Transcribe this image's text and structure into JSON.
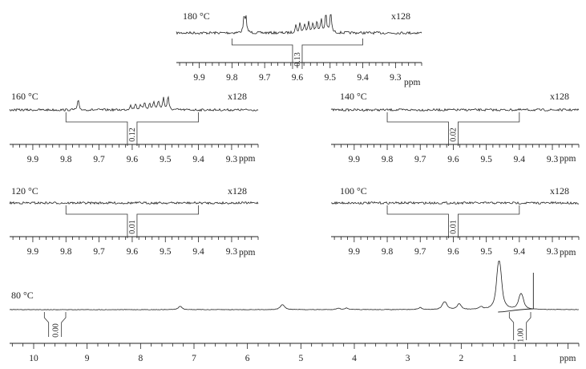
{
  "chart_data": [
    {
      "type": "line",
      "temperature_label": "180 °C",
      "scale_label": "x128",
      "integral_value": "0.13",
      "integral_range_ppm": [
        9.8,
        9.4
      ],
      "xlim_ppm": [
        9.97,
        9.22
      ],
      "x_ticks": [
        "9.9",
        "9.8",
        "9.7",
        "9.6",
        "9.5",
        "9.4",
        "9.3"
      ],
      "x_unit": "ppm",
      "peaks": [
        {
          "ppm": 9.763,
          "h": 0.62
        },
        {
          "ppm": 9.757,
          "h": 0.55
        },
        {
          "ppm": 9.605,
          "h": 0.3
        },
        {
          "ppm": 9.592,
          "h": 0.36
        },
        {
          "ppm": 9.578,
          "h": 0.34
        },
        {
          "ppm": 9.565,
          "h": 0.42
        },
        {
          "ppm": 9.553,
          "h": 0.38
        },
        {
          "ppm": 9.54,
          "h": 0.46
        },
        {
          "ppm": 9.527,
          "h": 0.5
        },
        {
          "ppm": 9.513,
          "h": 0.78
        },
        {
          "ppm": 9.498,
          "h": 0.82
        }
      ]
    },
    {
      "type": "line",
      "temperature_label": "160 °C",
      "scale_label": "x128",
      "integral_value": "0.12",
      "integral_range_ppm": [
        9.8,
        9.4
      ],
      "xlim_ppm": [
        9.97,
        9.22
      ],
      "x_ticks": [
        "9.9",
        "9.8",
        "9.7",
        "9.6",
        "9.5",
        "9.4",
        "9.3"
      ],
      "x_unit": "ppm",
      "peaks": [
        {
          "ppm": 9.763,
          "h": 0.5
        },
        {
          "ppm": 9.605,
          "h": 0.28
        },
        {
          "ppm": 9.59,
          "h": 0.32
        },
        {
          "ppm": 9.575,
          "h": 0.3
        },
        {
          "ppm": 9.562,
          "h": 0.36
        },
        {
          "ppm": 9.548,
          "h": 0.34
        },
        {
          "ppm": 9.535,
          "h": 0.44
        },
        {
          "ppm": 9.521,
          "h": 0.5
        },
        {
          "ppm": 9.506,
          "h": 0.66
        },
        {
          "ppm": 9.492,
          "h": 0.7
        }
      ]
    },
    {
      "type": "line",
      "temperature_label": "140 °C",
      "scale_label": "x128",
      "integral_value": "0.02",
      "integral_range_ppm": [
        9.8,
        9.4
      ],
      "xlim_ppm": [
        9.97,
        9.22
      ],
      "x_ticks": [
        "9.9",
        "9.8",
        "9.7",
        "9.6",
        "9.5",
        "9.4",
        "9.3"
      ],
      "x_unit": "ppm",
      "peaks": []
    },
    {
      "type": "line",
      "temperature_label": "120 °C",
      "scale_label": "x128",
      "integral_value": "0.01",
      "integral_range_ppm": [
        9.8,
        9.4
      ],
      "xlim_ppm": [
        9.97,
        9.22
      ],
      "x_ticks": [
        "9.9",
        "9.8",
        "9.7",
        "9.6",
        "9.5",
        "9.4",
        "9.3"
      ],
      "x_unit": "ppm",
      "peaks": []
    },
    {
      "type": "line",
      "temperature_label": "100 °C",
      "scale_label": "x128",
      "integral_value": "0.01",
      "integral_range_ppm": [
        9.8,
        9.4
      ],
      "xlim_ppm": [
        9.97,
        9.22
      ],
      "x_ticks": [
        "9.9",
        "9.8",
        "9.7",
        "9.6",
        "9.5",
        "9.4",
        "9.3"
      ],
      "x_unit": "ppm",
      "peaks": []
    },
    {
      "type": "line",
      "temperature_label": "80 °C",
      "scale_label": "",
      "integrals": [
        {
          "value": "0.00",
          "range_ppm": [
            9.8,
            9.4
          ]
        },
        {
          "value": "1.00",
          "range_ppm": [
            1.1,
            0.7
          ]
        }
      ],
      "xlim_ppm": [
        10.45,
        -0.2
      ],
      "x_ticks": [
        "10",
        "9",
        "8",
        "7",
        "6",
        "5",
        "4",
        "3",
        "2",
        "1"
      ],
      "x_unit": "ppm",
      "peaks": [
        {
          "ppm": 7.26,
          "h": 0.07
        },
        {
          "ppm": 5.37,
          "h": 0.04
        },
        {
          "ppm": 5.34,
          "h": 0.05
        },
        {
          "ppm": 5.32,
          "h": 0.03
        },
        {
          "ppm": 4.3,
          "h": 0.03
        },
        {
          "ppm": 4.15,
          "h": 0.03
        },
        {
          "ppm": 2.77,
          "h": 0.04
        },
        {
          "ppm": 2.34,
          "h": 0.06
        },
        {
          "ppm": 2.31,
          "h": 0.08
        },
        {
          "ppm": 2.28,
          "h": 0.06
        },
        {
          "ppm": 2.05,
          "h": 0.07
        },
        {
          "ppm": 2.02,
          "h": 0.06
        },
        {
          "ppm": 1.63,
          "h": 0.05
        },
        {
          "ppm": 1.32,
          "h": 0.42
        },
        {
          "ppm": 1.29,
          "h": 0.5
        },
        {
          "ppm": 1.26,
          "h": 0.38
        },
        {
          "ppm": 0.91,
          "h": 0.12
        },
        {
          "ppm": 0.88,
          "h": 0.17
        },
        {
          "ppm": 0.85,
          "h": 0.12
        }
      ]
    }
  ]
}
